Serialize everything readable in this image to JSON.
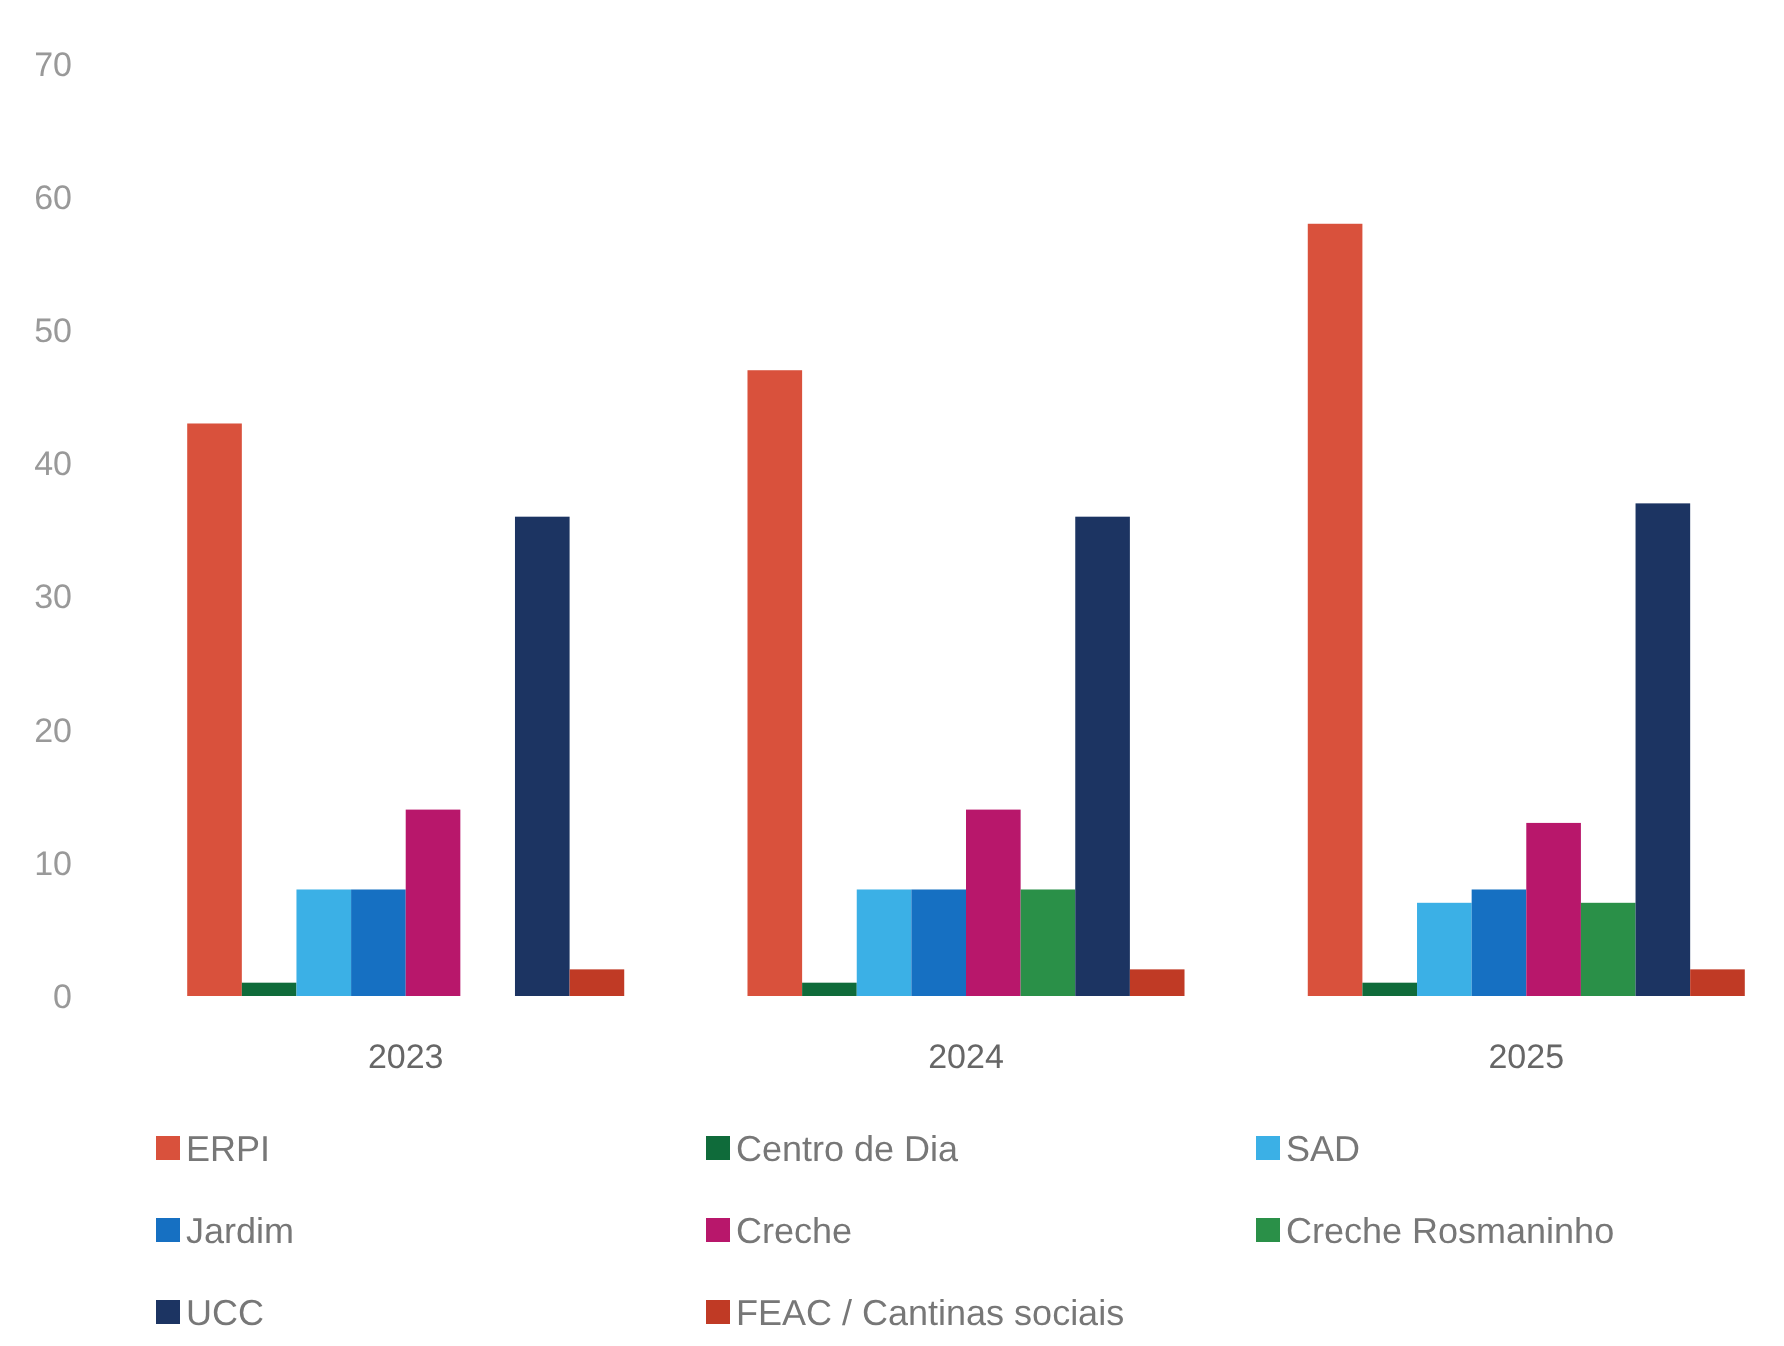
{
  "chart_data": {
    "type": "bar",
    "categories": [
      "2023",
      "2024",
      "2025"
    ],
    "series": [
      {
        "name": "ERPI",
        "color": "#d9513c",
        "values": [
          43,
          47,
          58
        ]
      },
      {
        "name": "Centro de Dia",
        "color": "#0f6b3a",
        "values": [
          1,
          1,
          1
        ]
      },
      {
        "name": "SAD",
        "color": "#3bb0e6",
        "values": [
          8,
          8,
          7
        ]
      },
      {
        "name": "Jardim",
        "color": "#1670c2",
        "values": [
          8,
          8,
          8
        ]
      },
      {
        "name": "Creche",
        "color": "#b8176b",
        "values": [
          14,
          14,
          13
        ]
      },
      {
        "name": "Creche Rosmaninho",
        "color": "#2a9048",
        "values": [
          0,
          8,
          7
        ]
      },
      {
        "name": "UCC",
        "color": "#1c3462",
        "values": [
          36,
          36,
          37
        ]
      },
      {
        "name": "FEAC / Cantinas sociais",
        "color": "#c03a25",
        "values": [
          2,
          2,
          2
        ]
      }
    ],
    "ylim": [
      0,
      70
    ],
    "yticks": [
      0,
      10,
      20,
      30,
      40,
      50,
      60,
      70
    ],
    "grid": false,
    "legend": "bottom"
  }
}
